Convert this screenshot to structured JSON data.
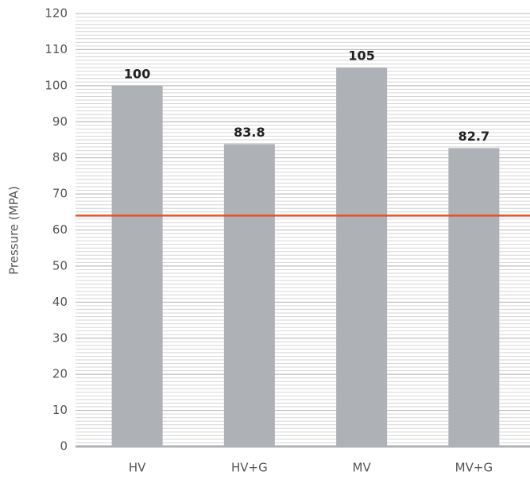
{
  "chart_data": {
    "type": "bar",
    "y_axis_label": "Pressure (MPA)",
    "categories": [
      "HV",
      "HV+G",
      "MV",
      "MV+G"
    ],
    "values": [
      100,
      83.8,
      105,
      82.7
    ],
    "color": "#aeb1b5",
    "ylim": [
      0,
      120
    ],
    "yticks": [
      0,
      10,
      20,
      30,
      40,
      50,
      60,
      70,
      80,
      90,
      100,
      110,
      120
    ],
    "grid": true,
    "minor_grid_step": 1,
    "reference_line": {
      "value": 64,
      "color": "#e8512a"
    }
  }
}
